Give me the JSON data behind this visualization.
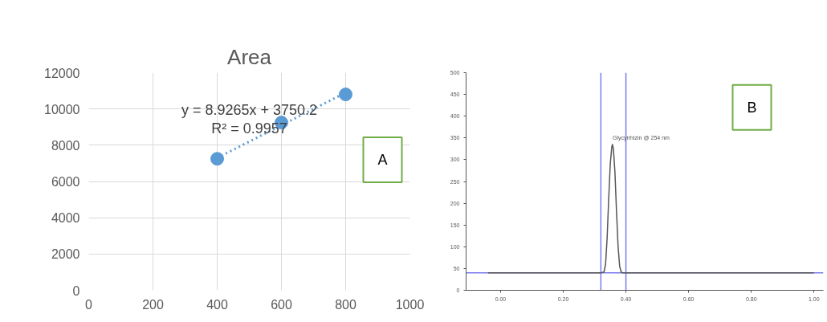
{
  "chart_data": [
    {
      "type": "scatter",
      "title": "Area",
      "xlim": [
        0,
        1000
      ],
      "ylim": [
        0,
        12000
      ],
      "xticks": [
        0,
        200,
        400,
        600,
        800,
        1000
      ],
      "yticks": [
        0,
        2000,
        4000,
        6000,
        8000,
        10000,
        12000
      ],
      "grid": true,
      "series": [
        {
          "marker": "circle",
          "color": "#5b9bd5",
          "x": [
            400,
            600,
            800
          ],
          "values": [
            7250,
            9250,
            10800
          ]
        },
        {
          "type": "line",
          "marker": "none",
          "line_style": "dotted",
          "color": "#5b9bd5",
          "x": [
            400,
            800
          ],
          "values": [
            7300,
            10900
          ]
        }
      ],
      "annotations": [
        "y = 8.9265x + 3750.2",
        "R² = 0.9957",
        "A"
      ]
    },
    {
      "type": "line",
      "xlim": [
        -0.11,
        1.03
      ],
      "ylim": [
        0,
        500
      ],
      "xticks": [
        {
          "value": 0,
          "label": "0.00"
        },
        {
          "value": 0.2,
          "label": "0.20"
        },
        {
          "value": 0.4,
          "label": "0.40"
        },
        {
          "value": 0.6,
          "label": "0.60"
        },
        {
          "value": 0.8,
          "label": "0.80"
        },
        {
          "value": 1.0,
          "label": "1.00"
        }
      ],
      "yticks": [
        0,
        50,
        100,
        150,
        200,
        250,
        300,
        350,
        400,
        450,
        500
      ],
      "grid": false,
      "series": [
        {
          "marker": "none",
          "line_style": "solid",
          "color": "#555555",
          "x": [
            -0.04,
            0.32,
            0.33,
            0.335,
            0.34,
            0.345,
            0.35,
            0.355,
            0.357,
            0.36,
            0.365,
            0.37,
            0.375,
            0.38,
            0.385,
            0.39,
            1.0
          ],
          "values": [
            40,
            40,
            42,
            60,
            120,
            210,
            290,
            330,
            335,
            325,
            270,
            180,
            100,
            55,
            42,
            40,
            40
          ]
        }
      ],
      "ref_lines": [
        {
          "axis": "x",
          "value": 0.32,
          "color": "#7b7bf0"
        },
        {
          "axis": "x",
          "value": 0.4,
          "color": "#7b7bf0"
        },
        {
          "axis": "y",
          "value": 40,
          "color": "#7b7bf0"
        }
      ],
      "annotations": [
        "Glycyrrhizin @ 254 nm",
        "B"
      ]
    }
  ]
}
